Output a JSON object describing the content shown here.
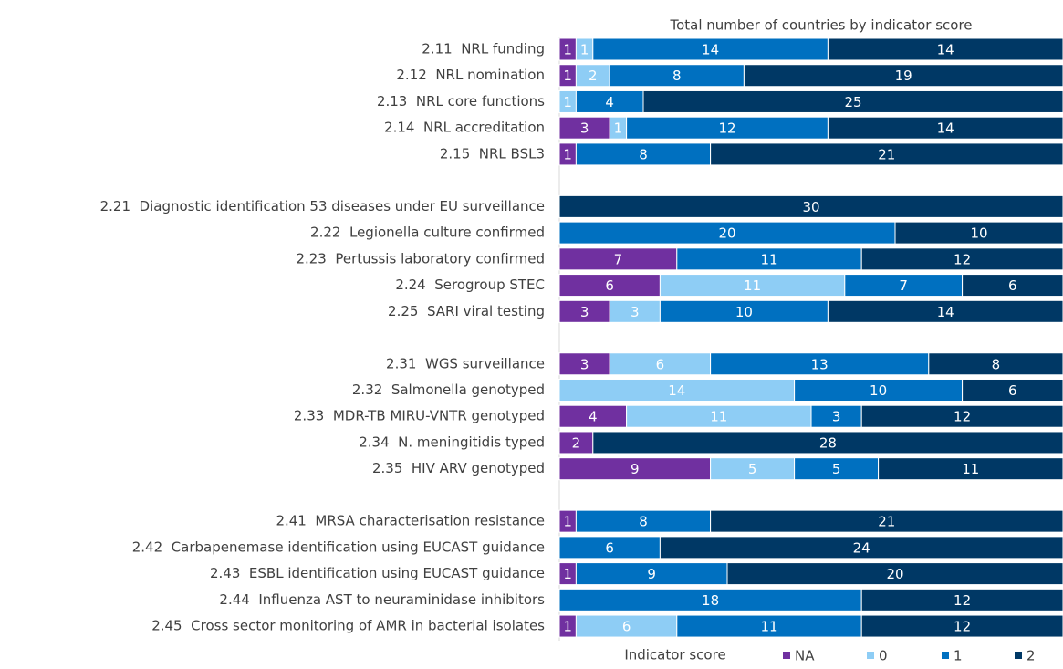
{
  "chart_data": {
    "type": "stacked-bar-horizontal",
    "title": "Total number of countries by indicator score",
    "legend_title": "Indicator score",
    "legend": "bottom",
    "xlim": [
      0,
      30
    ],
    "categories": [
      "2.11  NRL funding",
      "2.12  NRL nomination",
      "2.13  NRL core functions",
      "2.14  NRL accreditation",
      "2.15  NRL BSL3",
      null,
      "2.21  Diagnostic identification 53 diseases under EU surveillance",
      "2.22  Legionella culture confirmed",
      "2.23  Pertussis laboratory confirmed",
      "2.24  Serogroup STEC",
      "2.25  SARI viral testing",
      null,
      "2.31  WGS surveillance",
      "2.32  Salmonella genotyped",
      "2.33  MDR-TB MIRU-VNTR genotyped",
      "2.34  N. meningitidis typed",
      "2.35  HIV ARV genotyped",
      null,
      "2.41  MRSA characterisation resistance",
      "2.42  Carbapenemase identification using EUCAST guidance",
      "2.43  ESBL identification using EUCAST guidance",
      "2.44  Influenza AST to neuraminidase inhibitors",
      "2.45  Cross sector monitoring of AMR in bacterial isolates"
    ],
    "series": [
      {
        "name": "NA",
        "color": "#7030a0",
        "values": [
          1,
          1,
          null,
          3,
          1,
          null,
          null,
          null,
          7,
          6,
          3,
          null,
          3,
          null,
          4,
          2,
          9,
          null,
          1,
          null,
          1,
          null,
          1
        ]
      },
      {
        "name": "0",
        "color": "#8ecdf5",
        "values": [
          1,
          2,
          1,
          1,
          null,
          null,
          null,
          null,
          null,
          11,
          3,
          null,
          6,
          14,
          11,
          null,
          5,
          null,
          null,
          null,
          null,
          null,
          6
        ]
      },
      {
        "name": "1",
        "color": "#0070c0",
        "values": [
          14,
          8,
          4,
          12,
          8,
          null,
          null,
          20,
          11,
          7,
          10,
          null,
          13,
          10,
          3,
          null,
          5,
          null,
          8,
          6,
          9,
          18,
          11
        ]
      },
      {
        "name": "2",
        "color": "#003865",
        "values": [
          14,
          19,
          25,
          14,
          21,
          null,
          30,
          10,
          12,
          6,
          14,
          null,
          8,
          6,
          12,
          28,
          11,
          null,
          21,
          24,
          20,
          12,
          12
        ]
      }
    ]
  }
}
